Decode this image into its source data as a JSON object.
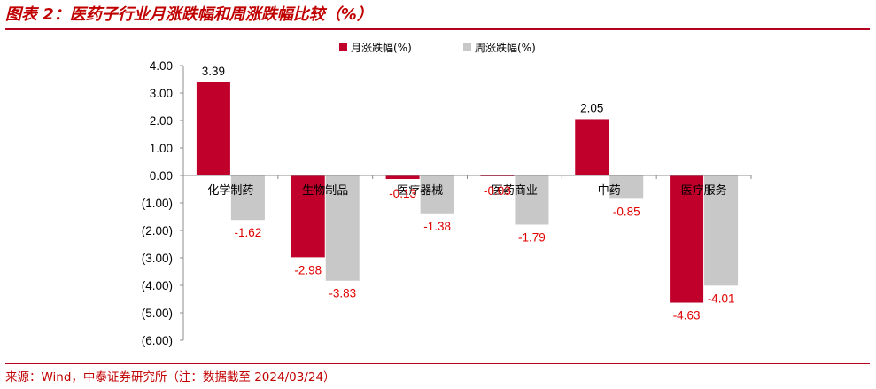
{
  "title": "图表 2：医药子行业月涨跌幅和周涨跌幅比较（%）",
  "source": "来源：Wind，中泰证券研究所（注：数据截至 2024/03/24）",
  "colors": {
    "brand": "#c00000",
    "monthly": "#c0002a",
    "weekly": "#c8c8c8",
    "label_neg": "#e00000",
    "label_pos": "#000000"
  },
  "chart_data": {
    "type": "bar",
    "categories": [
      "化学制药",
      "生物制品",
      "医疗器械",
      "医药商业",
      "中药",
      "医疗服务"
    ],
    "series": [
      {
        "name": "月涨跌幅(%)",
        "values": [
          3.39,
          -2.98,
          -0.13,
          -0.03,
          2.05,
          -4.63
        ],
        "labels": [
          "3.39",
          "-2.98",
          "-0.13",
          "-0.03",
          "2.05",
          "-4.63"
        ]
      },
      {
        "name": "周涨跌幅(%)",
        "values": [
          -1.62,
          -3.83,
          -1.38,
          -1.79,
          -0.85,
          -4.01
        ],
        "labels": [
          "-1.62",
          "-3.83",
          "-1.38",
          "-1.79",
          "-0.85",
          "-4.01"
        ]
      }
    ],
    "ylim": [
      -6,
      4
    ],
    "yticks": [
      4,
      3,
      2,
      1,
      0,
      -1,
      -2,
      -3,
      -4,
      -5,
      -6
    ],
    "ytick_labels": [
      "4.00",
      "3.00",
      "2.00",
      "1.00",
      "0.00",
      "(1.00)",
      "(2.00)",
      "(3.00)",
      "(4.00)",
      "(5.00)",
      "(6.00)"
    ],
    "legend_position": "top"
  }
}
